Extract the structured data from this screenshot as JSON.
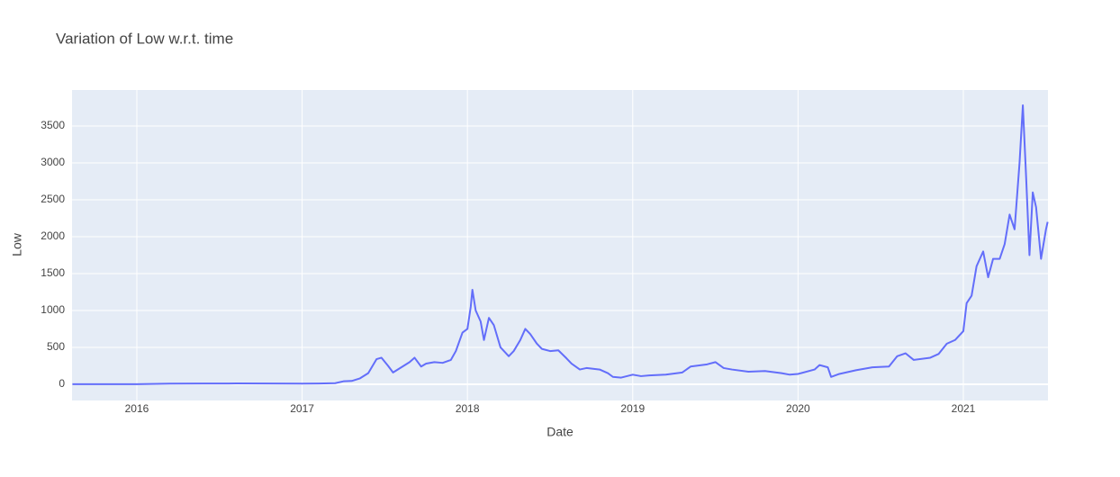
{
  "chart_data": {
    "type": "line",
    "title": "Variation of Low w.r.t. time",
    "x_label": "Date",
    "y_label": "Low",
    "color": "#636efa",
    "grid": true,
    "x": [
      2015.61,
      2015.8,
      2016.0,
      2016.2,
      2016.4,
      2016.6,
      2016.8,
      2017.0,
      2017.1,
      2017.2,
      2017.25,
      2017.3,
      2017.35,
      2017.4,
      2017.45,
      2017.48,
      2017.52,
      2017.55,
      2017.6,
      2017.65,
      2017.68,
      2017.72,
      2017.75,
      2017.8,
      2017.85,
      2017.9,
      2017.93,
      2017.97,
      2018.0,
      2018.02,
      2018.03,
      2018.05,
      2018.08,
      2018.1,
      2018.13,
      2018.16,
      2018.2,
      2018.25,
      2018.28,
      2018.32,
      2018.35,
      2018.38,
      2018.42,
      2018.45,
      2018.5,
      2018.55,
      2018.6,
      2018.63,
      2018.68,
      2018.72,
      2018.8,
      2018.85,
      2018.88,
      2018.93,
      2019.0,
      2019.05,
      2019.1,
      2019.2,
      2019.3,
      2019.35,
      2019.45,
      2019.5,
      2019.55,
      2019.6,
      2019.7,
      2019.8,
      2019.9,
      2019.95,
      2020.0,
      2020.1,
      2020.13,
      2020.18,
      2020.2,
      2020.25,
      2020.35,
      2020.45,
      2020.55,
      2020.6,
      2020.65,
      2020.7,
      2020.8,
      2020.85,
      2020.9,
      2020.95,
      2021.0,
      2021.02,
      2021.05,
      2021.08,
      2021.12,
      2021.15,
      2021.18,
      2021.22,
      2021.25,
      2021.28,
      2021.31,
      2021.34,
      2021.36,
      2021.38,
      2021.4,
      2021.42,
      2021.44,
      2021.47,
      2021.5,
      2021.51
    ],
    "values": [
      0.7,
      0.5,
      0.9,
      8,
      10,
      11,
      10,
      8,
      10,
      15,
      40,
      45,
      80,
      150,
      340,
      360,
      250,
      160,
      230,
      300,
      360,
      240,
      280,
      300,
      290,
      330,
      450,
      700,
      750,
      1050,
      1280,
      1000,
      850,
      600,
      900,
      800,
      500,
      380,
      450,
      600,
      750,
      680,
      550,
      480,
      450,
      460,
      350,
      280,
      200,
      220,
      200,
      150,
      100,
      90,
      130,
      110,
      120,
      130,
      160,
      240,
      270,
      300,
      220,
      200,
      170,
      180,
      150,
      130,
      140,
      200,
      260,
      230,
      100,
      140,
      190,
      230,
      240,
      380,
      420,
      330,
      360,
      410,
      550,
      600,
      720,
      1100,
      1200,
      1600,
      1800,
      1450,
      1700,
      1700,
      1900,
      2300,
      2100,
      3000,
      3780,
      2800,
      1750,
      2600,
      2400,
      1700,
      2100,
      2200
    ],
    "xlim": [
      2015.608,
      2021.512
    ],
    "xticks": [
      2016,
      2017,
      2018,
      2019,
      2020,
      2021
    ],
    "ylim": [
      -220,
      3988
    ],
    "yticks": [
      0,
      500,
      1000,
      1500,
      2000,
      2500,
      3000,
      3500
    ]
  }
}
